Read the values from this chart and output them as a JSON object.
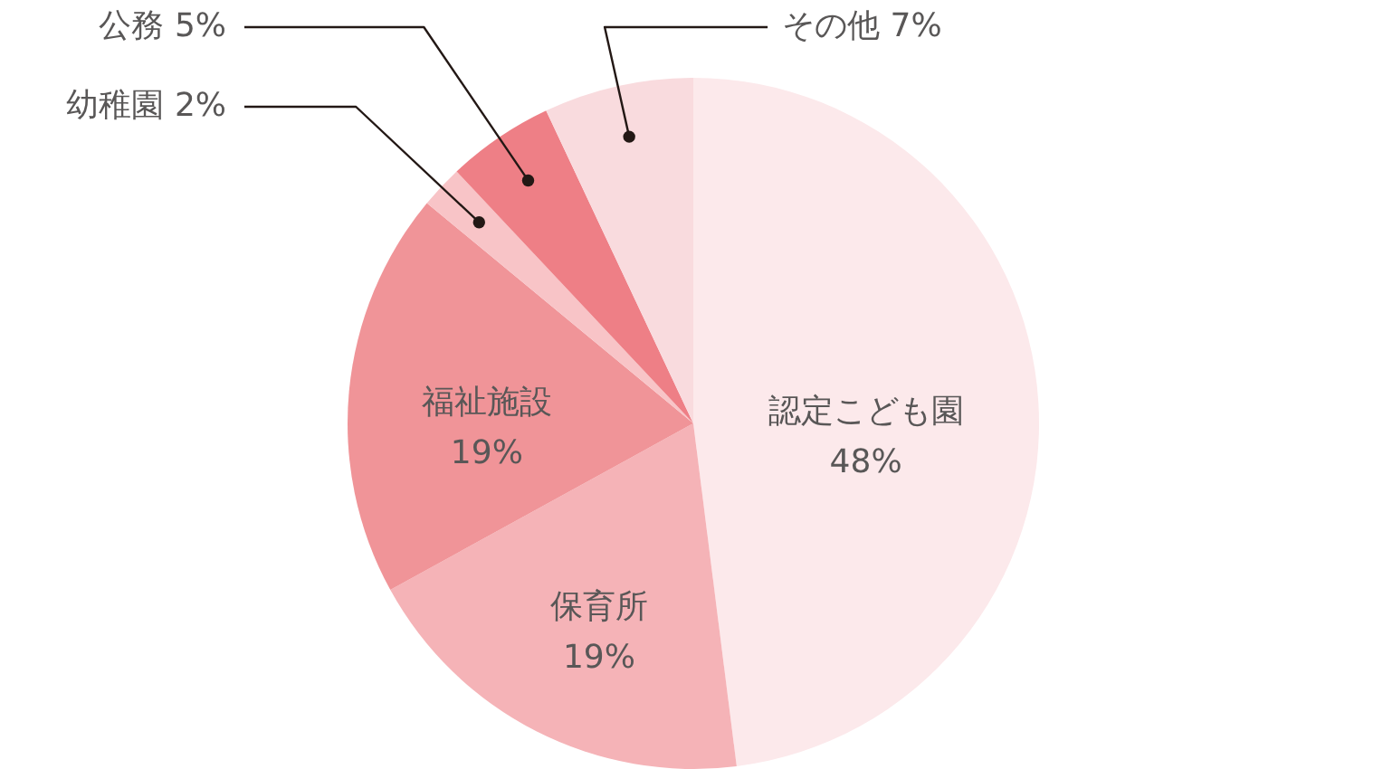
{
  "chart_data": {
    "type": "pie",
    "categories": [
      "認定こども園",
      "保育所",
      "福祉施設",
      "幼稚園",
      "公務",
      "その他"
    ],
    "values": [
      48,
      19,
      19,
      2,
      5,
      7
    ],
    "colors": [
      "#fce9eb",
      "#f5b3b7",
      "#f09498",
      "#f8c4c7",
      "#ee7f86",
      "#f9dbde"
    ],
    "value_labels": [
      "48%",
      "19%",
      "19%",
      "2%",
      "5%",
      "7%"
    ]
  }
}
